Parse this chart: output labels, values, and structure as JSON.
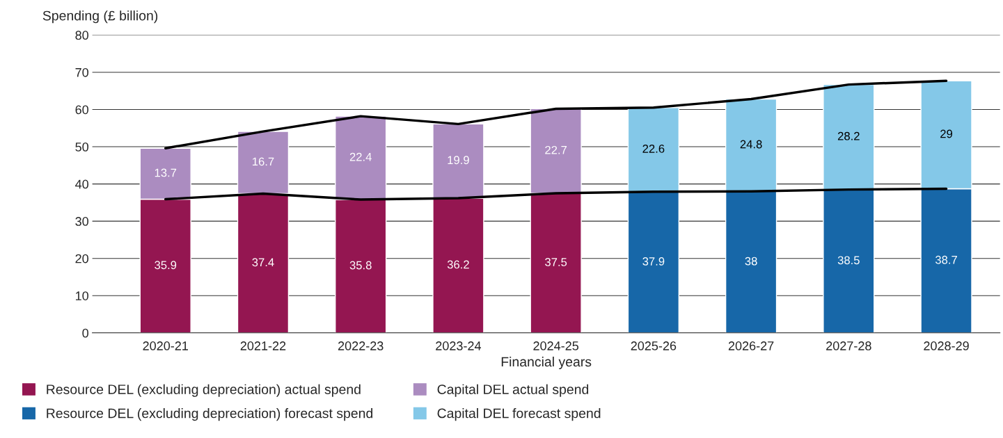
{
  "chart_data": {
    "type": "bar",
    "stacked": true,
    "xlabel": "Financial years",
    "ylabel": "Spending (£ billion)",
    "categories": [
      "2020-21",
      "2021-22",
      "2022-23",
      "2023-24",
      "2024-25",
      "2025-26",
      "2026-27",
      "2027-28",
      "2028-29"
    ],
    "series": [
      {
        "name": "Resource DEL (excluding depreciation) actual spend",
        "color": "#941651",
        "values": [
          35.9,
          37.4,
          35.8,
          36.2,
          37.5,
          null,
          null,
          null,
          null
        ]
      },
      {
        "name": "Resource DEL (excluding depreciation) forecast spend",
        "color": "#1767a8",
        "values": [
          null,
          null,
          null,
          null,
          null,
          37.9,
          38,
          38.5,
          38.7
        ]
      },
      {
        "name": "Capital DEL actual spend",
        "color": "#ab8cc0",
        "values": [
          13.7,
          16.7,
          22.4,
          19.9,
          22.7,
          null,
          null,
          null,
          null
        ]
      },
      {
        "name": "Capital DEL forecast spend",
        "color": "#84c8e8",
        "values": [
          null,
          null,
          null,
          null,
          null,
          22.6,
          24.8,
          28.2,
          29
        ]
      },
      {
        "type": "line",
        "color": "#000000",
        "values": [
          35.9,
          37.4,
          35.8,
          36.2,
          37.5,
          37.9,
          38,
          38.5,
          38.7
        ],
        "value_labels": [
          null,
          null,
          null,
          null,
          null,
          null,
          null,
          null,
          null
        ]
      },
      {
        "type": "line",
        "color": "#000000",
        "values": [
          49.6,
          54.1,
          58.2,
          56.1,
          60.2,
          60.5,
          62.8,
          66.7,
          67.7
        ],
        "value_labels": [
          null,
          null,
          null,
          null,
          null,
          null,
          null,
          null,
          null
        ]
      }
    ],
    "ylim": [
      0,
      80
    ],
    "yticks": [
      0,
      10,
      20,
      30,
      40,
      50,
      60,
      70,
      80
    ],
    "grid": "y",
    "legend": "bottom",
    "data_labels": true
  }
}
